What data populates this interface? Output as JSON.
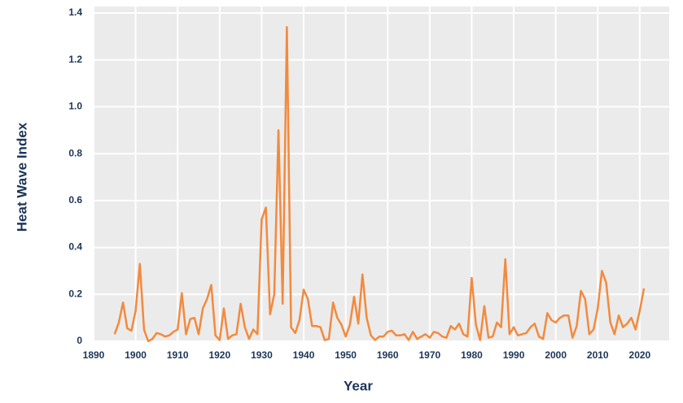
{
  "chart_data": {
    "type": "line",
    "xlabel": "Year",
    "ylabel": "Heat Wave Index",
    "x": [
      1895,
      1896,
      1897,
      1898,
      1899,
      1900,
      1901,
      1902,
      1903,
      1904,
      1905,
      1906,
      1907,
      1908,
      1909,
      1910,
      1911,
      1912,
      1913,
      1914,
      1915,
      1916,
      1917,
      1918,
      1919,
      1920,
      1921,
      1922,
      1923,
      1924,
      1925,
      1926,
      1927,
      1928,
      1929,
      1930,
      1931,
      1932,
      1933,
      1934,
      1935,
      1936,
      1937,
      1938,
      1939,
      1940,
      1941,
      1942,
      1943,
      1944,
      1945,
      1946,
      1947,
      1948,
      1949,
      1950,
      1951,
      1952,
      1953,
      1954,
      1955,
      1956,
      1957,
      1958,
      1959,
      1960,
      1961,
      1962,
      1963,
      1964,
      1965,
      1966,
      1967,
      1968,
      1969,
      1970,
      1971,
      1972,
      1973,
      1974,
      1975,
      1976,
      1977,
      1978,
      1979,
      1980,
      1981,
      1982,
      1983,
      1984,
      1985,
      1986,
      1987,
      1988,
      1989,
      1990,
      1991,
      1992,
      1993,
      1994,
      1995,
      1996,
      1997,
      1998,
      1999,
      2000,
      2001,
      2002,
      2003,
      2004,
      2005,
      2006,
      2007,
      2008,
      2009,
      2010,
      2011,
      2012,
      2013,
      2014,
      2015,
      2016,
      2017,
      2018,
      2019,
      2020,
      2021
    ],
    "values": [
      0.03,
      0.08,
      0.165,
      0.055,
      0.045,
      0.13,
      0.33,
      0.05,
      0.0,
      0.01,
      0.035,
      0.03,
      0.02,
      0.025,
      0.04,
      0.05,
      0.205,
      0.03,
      0.095,
      0.1,
      0.03,
      0.14,
      0.18,
      0.24,
      0.025,
      0.005,
      0.14,
      0.01,
      0.025,
      0.03,
      0.16,
      0.06,
      0.01,
      0.05,
      0.03,
      0.52,
      0.57,
      0.115,
      0.2,
      0.9,
      0.16,
      1.34,
      0.06,
      0.035,
      0.09,
      0.22,
      0.18,
      0.065,
      0.065,
      0.06,
      0.005,
      0.01,
      0.165,
      0.1,
      0.07,
      0.02,
      0.07,
      0.19,
      0.075,
      0.285,
      0.1,
      0.025,
      0.005,
      0.02,
      0.02,
      0.04,
      0.045,
      0.025,
      0.025,
      0.03,
      0.005,
      0.04,
      0.01,
      0.02,
      0.03,
      0.015,
      0.04,
      0.035,
      0.02,
      0.015,
      0.065,
      0.05,
      0.075,
      0.03,
      0.02,
      0.27,
      0.07,
      0.005,
      0.15,
      0.015,
      0.02,
      0.08,
      0.06,
      0.35,
      0.03,
      0.06,
      0.025,
      0.03,
      0.035,
      0.06,
      0.075,
      0.02,
      0.01,
      0.12,
      0.09,
      0.08,
      0.1,
      0.11,
      0.11,
      0.015,
      0.065,
      0.215,
      0.18,
      0.03,
      0.05,
      0.14,
      0.3,
      0.25,
      0.08,
      0.03,
      0.11,
      0.06,
      0.075,
      0.1,
      0.05,
      0.13,
      0.225
    ],
    "color": "#f28a3e",
    "xlim": [
      1890,
      2027
    ],
    "ylim": [
      0,
      1.4
    ],
    "xticks": [
      1890,
      1900,
      1910,
      1920,
      1930,
      1940,
      1950,
      1960,
      1970,
      1980,
      1990,
      2000,
      2010,
      2020
    ],
    "yticks": [
      0,
      0.2,
      0.4,
      0.6,
      0.8,
      {
        "value": 1,
        "label": "1.0"
      },
      1.2,
      1.4
    ],
    "grid": true
  }
}
